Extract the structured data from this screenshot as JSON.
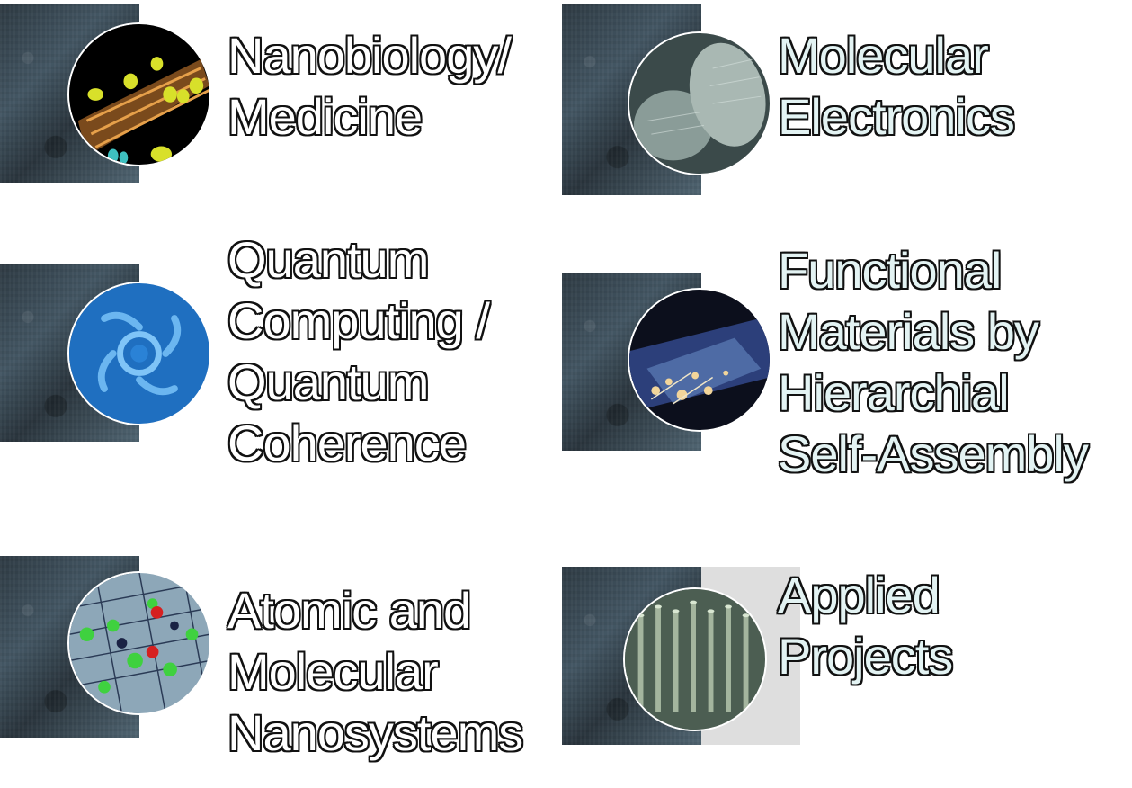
{
  "tiles": [
    {
      "id": "nanobiology",
      "lines": [
        "Nanobiology/",
        "Medicine"
      ],
      "icon": "nanobiology-thumbnail-icon"
    },
    {
      "id": "molecular-electronics",
      "lines": [
        "Molecular",
        "Electronics"
      ],
      "icon": "molecular-electronics-thumbnail-icon"
    },
    {
      "id": "quantum",
      "lines": [
        "Quantum",
        "Computing /",
        "Quantum",
        "Coherence"
      ],
      "icon": "quantum-thumbnail-icon"
    },
    {
      "id": "functional-materials",
      "lines": [
        "Functional",
        "Materials by",
        "Hierarchial",
        "Self-Assembly"
      ],
      "icon": "functional-materials-thumbnail-icon"
    },
    {
      "id": "atomic-molecular",
      "lines": [
        "Atomic and",
        "Molecular",
        "Nanosystems"
      ],
      "icon": "atomic-molecular-thumbnail-icon"
    },
    {
      "id": "applied-projects",
      "lines": [
        "Applied",
        "Projects"
      ],
      "icon": "applied-projects-thumbnail-icon"
    }
  ],
  "colors": {
    "label_fill": "#ffffff",
    "label_fill_tinted": "#e3f3f3",
    "label_outline": "#111111",
    "swatch_dark": "#2f3b44"
  }
}
